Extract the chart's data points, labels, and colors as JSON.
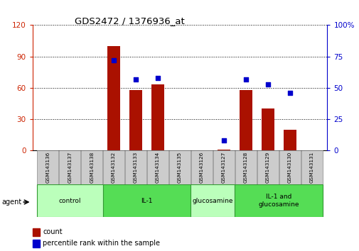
{
  "title": "GDS2472 / 1376936_at",
  "samples": [
    "GSM143136",
    "GSM143137",
    "GSM143138",
    "GSM143132",
    "GSM143133",
    "GSM143134",
    "GSM143135",
    "GSM143126",
    "GSM143127",
    "GSM143128",
    "GSM143129",
    "GSM143130",
    "GSM143131"
  ],
  "counts": [
    0,
    0,
    0,
    100,
    58,
    63,
    0,
    0,
    1,
    58,
    40,
    20,
    0
  ],
  "percentiles": [
    null,
    null,
    null,
    72,
    57,
    58,
    null,
    null,
    8,
    57,
    53,
    46,
    null
  ],
  "bar_color": "#aa1100",
  "dot_color": "#0000cc",
  "ylim_left": [
    0,
    120
  ],
  "ylim_right": [
    0,
    100
  ],
  "yticks_left": [
    0,
    30,
    60,
    90,
    120
  ],
  "yticks_right": [
    0,
    25,
    50,
    75,
    100
  ],
  "groups": [
    {
      "label": "control",
      "indices": [
        0,
        1,
        2
      ],
      "color": "#bbffbb"
    },
    {
      "label": "IL-1",
      "indices": [
        3,
        4,
        5,
        6
      ],
      "color": "#55dd55"
    },
    {
      "label": "glucosamine",
      "indices": [
        7,
        8
      ],
      "color": "#bbffbb"
    },
    {
      "label": "IL-1 and\nglucosamine",
      "indices": [
        9,
        10,
        11,
        12
      ],
      "color": "#55dd55"
    }
  ],
  "legend_count_label": "count",
  "legend_pct_label": "percentile rank within the sample",
  "agent_label": "agent",
  "bg_plot": "#ffffff",
  "tick_color_left": "#cc2200",
  "tick_color_right": "#0000cc"
}
